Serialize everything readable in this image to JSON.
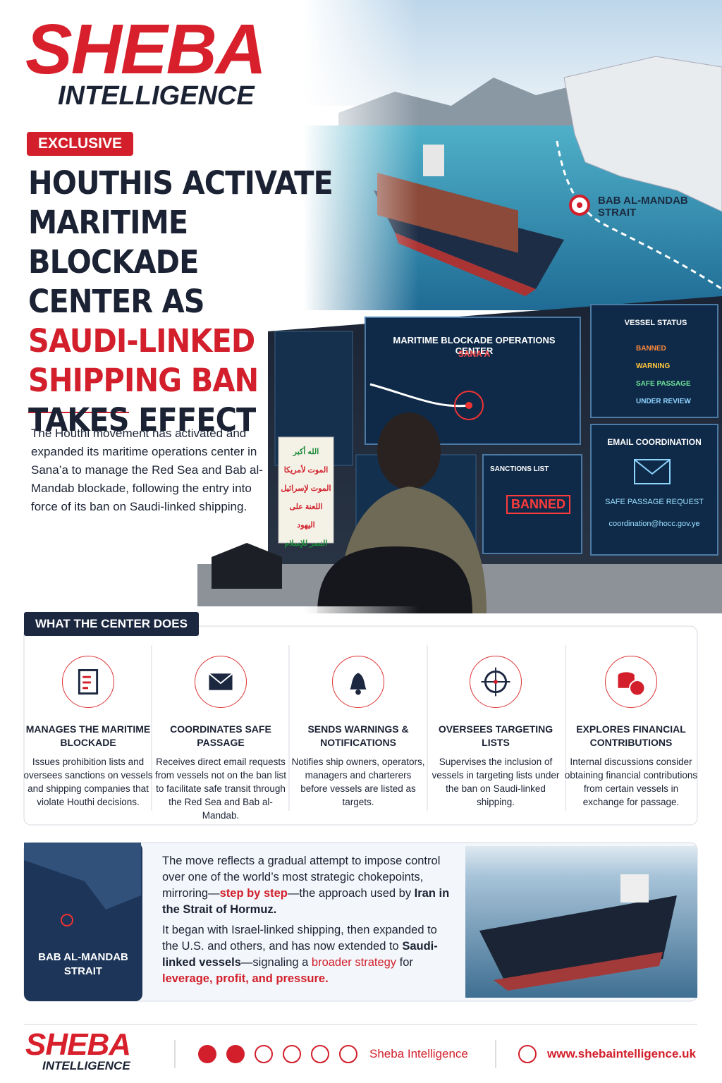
{
  "header": {
    "logo_top": "SHEBA",
    "logo_bottom": "INTELLIGENCE",
    "badge": "EXCLUSIVE",
    "headline": [
      "HOUTHIS ACTIVATE",
      "MARITIME BLOCKADE",
      "CENTER AS",
      "SAUDI-LINKED",
      "SHIPPING BAN",
      "TAKES EFFECT"
    ],
    "intro": "The Houthi movement has activated and expanded its maritime operations center in Sana’a to manage the Red Sea and Bab al-Mandab blockade, following the entry into force of its ban on Saudi-linked shipping."
  },
  "hero": {
    "map_label": "BAB AL-MANDAB STRAIT",
    "main_screen": {
      "title": "MARITIME BLOCKADE OPERATIONS CENTER",
      "subtitle": "SANA’A"
    },
    "vessel_status": {
      "title": "VESSEL STATUS",
      "items": [
        "BANNED",
        "WARNING",
        "SAFE PASSAGE",
        "UNDER REVIEW"
      ]
    },
    "sanctions": {
      "title": "SANCTIONS LIST",
      "stamp": "BANNED"
    },
    "email": {
      "title": "EMAIL COORDINATION",
      "request": "SAFE PASSAGE REQUEST",
      "address": "coordination@hocc.gov.ye"
    },
    "banner": [
      "الله أكبر",
      "الموت لأمريكا",
      "الموت لإسرائيل",
      "اللعنة على اليهود",
      "النصر للإسلام"
    ]
  },
  "center": {
    "heading": "WHAT THE CENTER DOES",
    "items": [
      {
        "title": "MANAGES THE MARITIME BLOCKADE",
        "text": "Issues prohibition lists and oversees sanctions on vessels and shipping companies that violate Houthi decisions."
      },
      {
        "title": "COORDINATES SAFE PASSAGE",
        "text": "Receives direct email requests from vessels not on the ban list to facilitate safe transit through the Red Sea and Bab al-Mandab."
      },
      {
        "title": "SENDS WARNINGS & NOTIFICATIONS",
        "text": "Notifies ship owners, operators, managers and charterers before vessels are listed as targets."
      },
      {
        "title": "OVERSEES TARGETING LISTS",
        "text": "Supervises the inclusion of vessels in targeting lists under the ban on Saudi-linked shipping."
      },
      {
        "title": "EXPLORES FINANCIAL CONTRIBUTIONS",
        "text": "Internal discussions consider obtaining financial contributions from certain vessels in exchange for passage."
      }
    ]
  },
  "analysis": {
    "map_label": "BAB AL-MANDAB STRAIT",
    "paragraphs": [
      [
        "The move reflects a gradual attempt to impose control over one of the world’s most strategic chokepoints, mirroring—",
        "step by step",
        "—the approach used by ",
        "Iran in the Strait of Hormuz."
      ],
      [
        "It began with Israel-linked shipping, then expanded to the U.S. and others, and has now extended to ",
        "Saudi-linked vessels",
        "—signaling a ",
        "broader strategy",
        " for ",
        "leverage, profit, and pressure."
      ]
    ]
  },
  "footer": {
    "logo_top": "SHEBA",
    "logo_bottom": "INTELLIGENCE",
    "handle": "Sheba Intelligence",
    "website": "www.shebaintelligence.uk"
  }
}
